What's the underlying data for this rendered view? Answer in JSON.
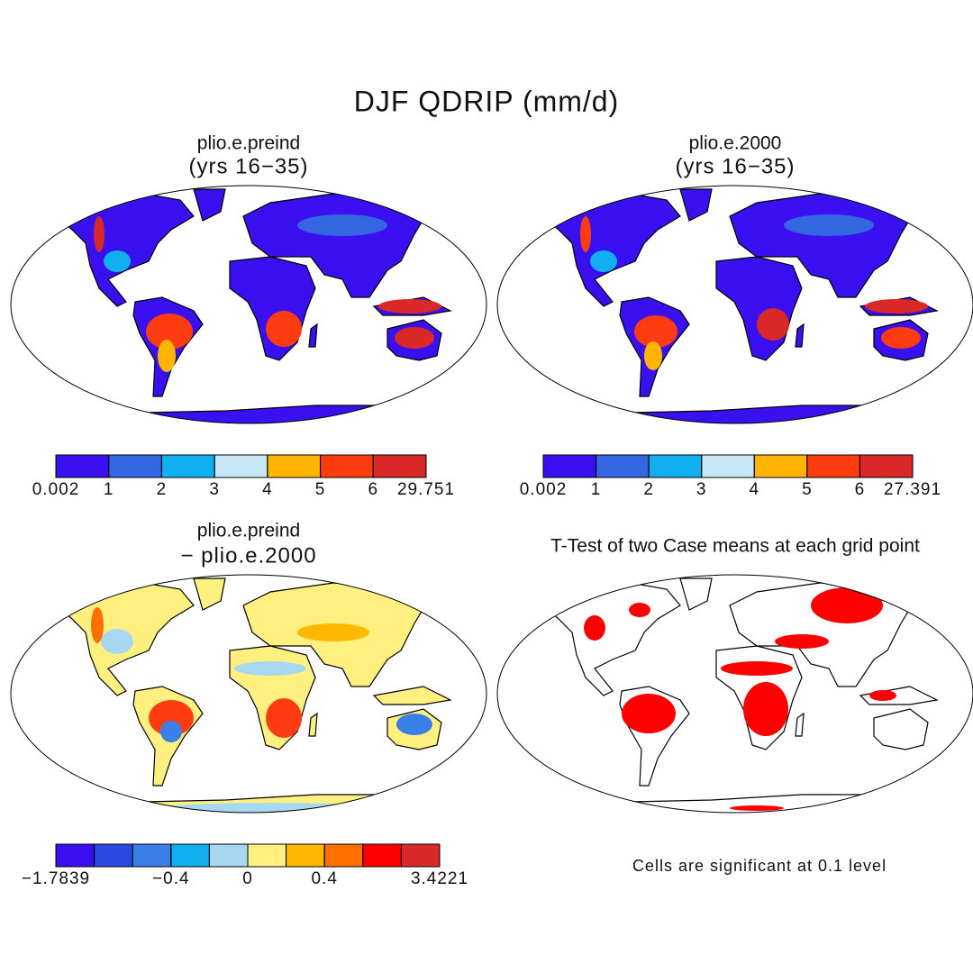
{
  "title": "DJF QDRIP (mm/d)",
  "panels": [
    {
      "title": "plio.e.preind",
      "subtitle": "(yrs 16−35)",
      "colorbar": {
        "colors": [
          "#3a10f0",
          "#3366e0",
          "#10b0f0",
          "#c8e8f8",
          "#ffb400",
          "#ff3c10",
          "#d82828"
        ],
        "levels": [
          0.002,
          1,
          2,
          3,
          4,
          5,
          6,
          29.751
        ]
      }
    },
    {
      "title": "plio.e.2000",
      "subtitle": "(yrs 16−35)",
      "colorbar": {
        "colors": [
          "#3a10f0",
          "#3366e0",
          "#10b0f0",
          "#c8e8f8",
          "#ffb400",
          "#ff3c10",
          "#d82828"
        ],
        "levels": [
          0.002,
          1,
          2,
          3,
          4,
          5,
          6,
          27.391
        ]
      }
    },
    {
      "title": "plio.e.preind",
      "subtitle": "− plio.e.2000",
      "colorbar": {
        "colors": [
          "#3a10f0",
          "#2848e0",
          "#3a80e8",
          "#10b0f0",
          "#a8d8f0",
          "#fff080",
          "#ffb800",
          "#ff7000",
          "#ff0000",
          "#d82828"
        ],
        "levels": [
          {
            "value": -1.7839,
            "label": "−1.7839"
          },
          null,
          null,
          {
            "value": -0.4,
            "label": "−0.4"
          },
          null,
          0,
          null,
          0.4,
          null,
          null,
          3.4221
        ]
      }
    },
    {
      "title": "T-Test of two Case means at each grid point",
      "note": "Cells are significant at 0.1 level"
    }
  ]
}
